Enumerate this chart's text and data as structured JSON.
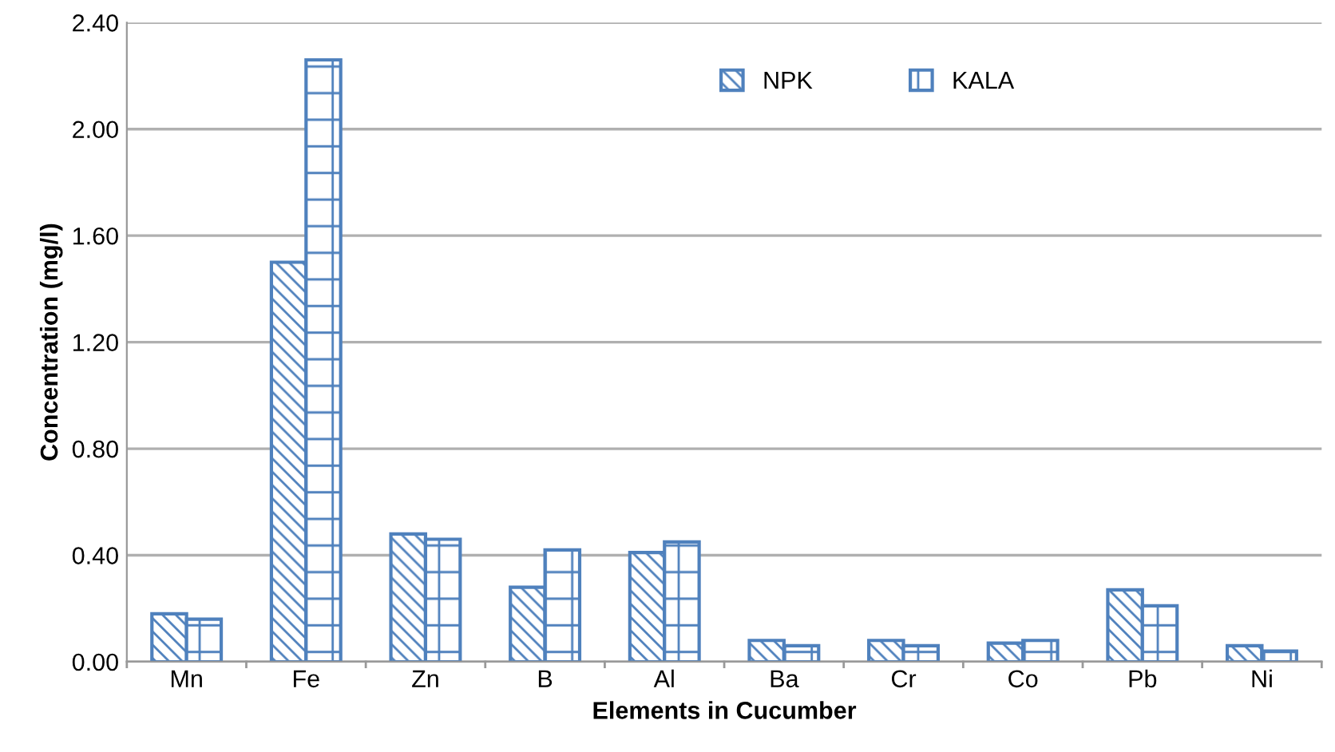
{
  "chart_data": {
    "type": "bar",
    "xlabel": "Elements in Cucumber",
    "ylabel": "Concentration (mg/l)",
    "categories": [
      "Mn",
      "Fe",
      "Zn",
      "B",
      "Al",
      "Ba",
      "Cr",
      "Co",
      "Pb",
      "Ni"
    ],
    "series": [
      {
        "name": "NPK",
        "color": "#4f81bd",
        "values": [
          0.18,
          1.5,
          0.48,
          0.28,
          0.41,
          0.08,
          0.08,
          0.07,
          0.27,
          0.06
        ]
      },
      {
        "name": "KALA",
        "color": "#4f81bd",
        "values": [
          0.16,
          2.26,
          0.46,
          0.42,
          0.45,
          0.06,
          0.06,
          0.08,
          0.21,
          0.04
        ]
      }
    ],
    "ylim": [
      0,
      2.4
    ],
    "yticks": [
      {
        "value": 0,
        "label": "0.00"
      },
      {
        "value": 0.4,
        "label": "0.40"
      },
      {
        "value": 0.8,
        "label": "0.80"
      },
      {
        "value": 1.2,
        "label": "1.20"
      },
      {
        "value": 1.6,
        "label": "1.60"
      },
      {
        "value": 2.0,
        "label": "2.00"
      },
      {
        "value": 2.4,
        "label": "2.40"
      }
    ],
    "grid": "y",
    "legend": "top"
  }
}
